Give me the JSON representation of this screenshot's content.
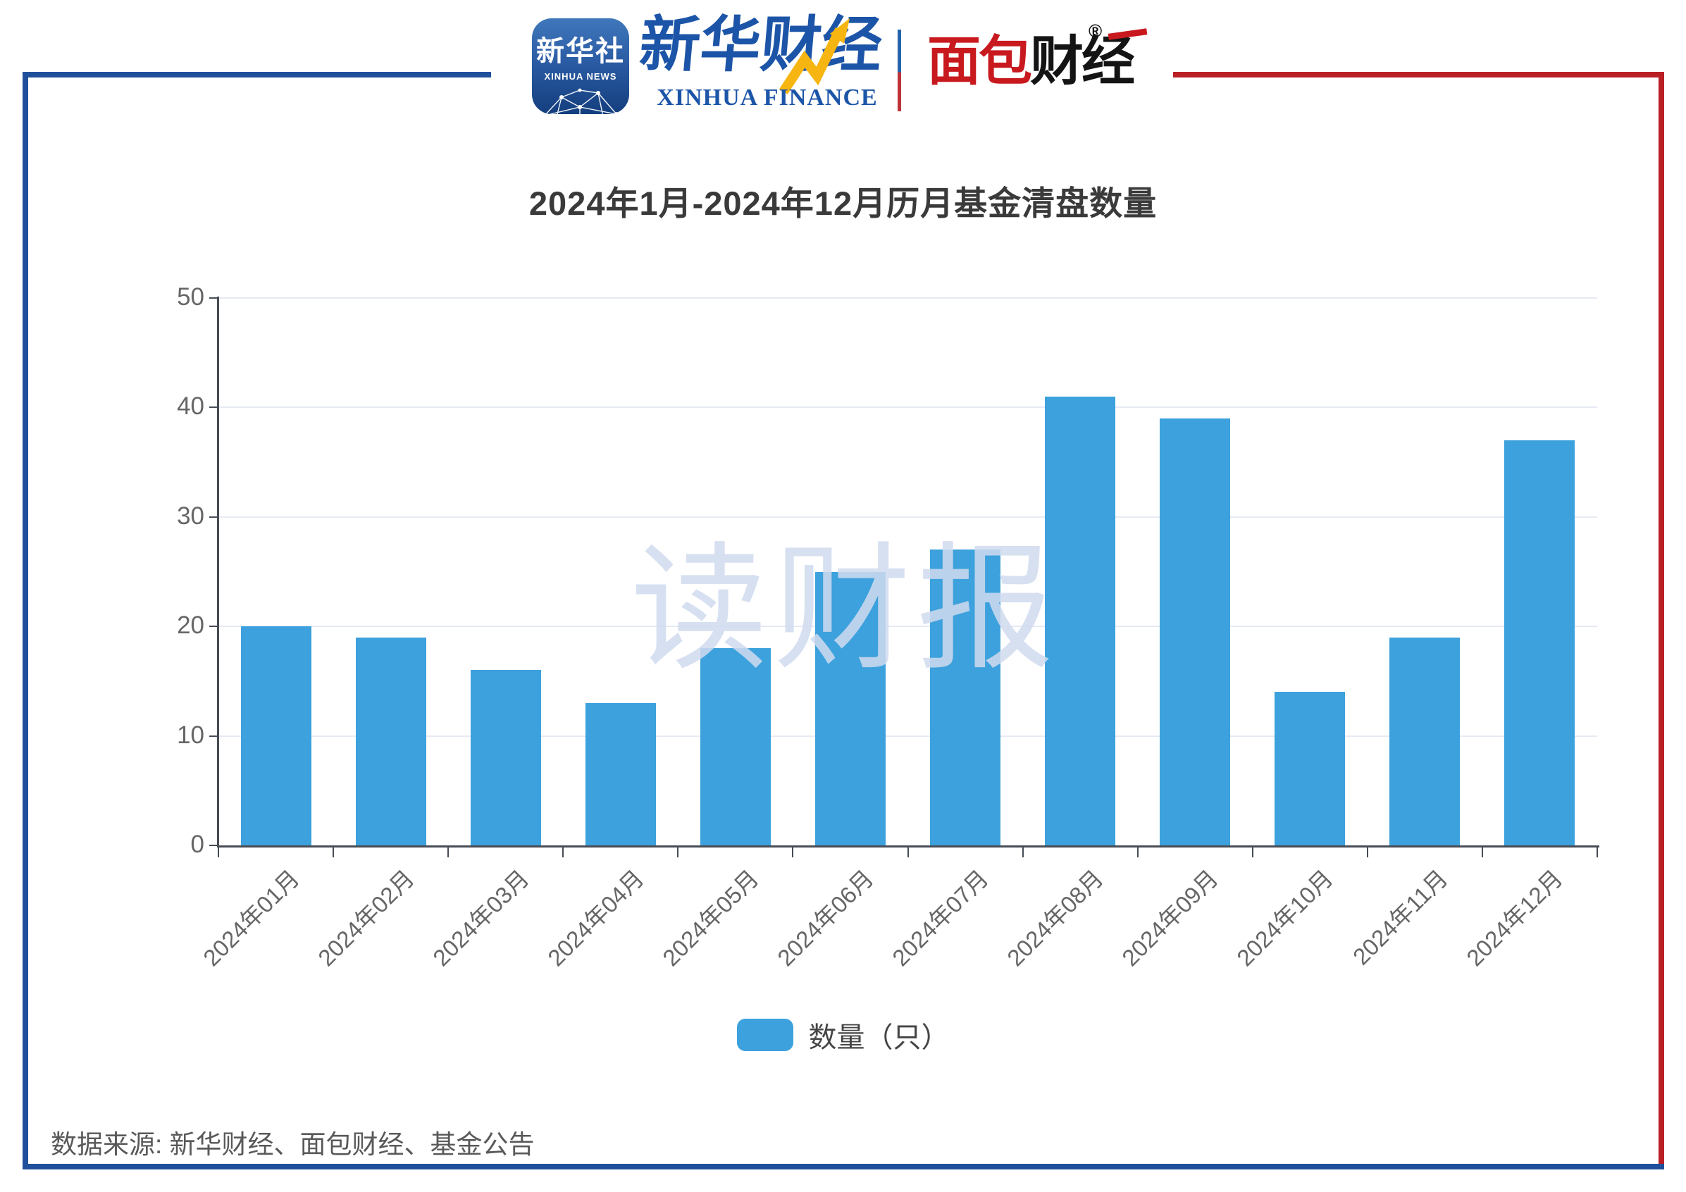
{
  "header": {
    "xinhua_news_icon": {
      "cn": "新华社",
      "en": "XINHUA NEWS"
    },
    "xinhua_finance_logo": {
      "cn": "新华财经",
      "en": "XINHUA FINANCE"
    },
    "mianbao_logo": {
      "cn_red": "面包",
      "cn_black": "财经",
      "registered_mark": "®"
    }
  },
  "title": "2024年1月-2024年12月历月基金清盘数量",
  "chart_data": {
    "type": "bar",
    "title": "2024年1月-2024年12月历月基金清盘数量",
    "categories": [
      "2024年01月",
      "2024年02月",
      "2024年03月",
      "2024年04月",
      "2024年05月",
      "2024年06月",
      "2024年07月",
      "2024年08月",
      "2024年09月",
      "2024年10月",
      "2024年11月",
      "2024年12月"
    ],
    "series": [
      {
        "name": "数量（只）",
        "values": [
          20,
          19,
          16,
          13,
          18,
          25,
          27,
          41,
          39,
          14,
          19,
          37
        ]
      }
    ],
    "xlabel": "",
    "ylabel": "",
    "ylim": [
      0,
      50
    ],
    "yticks": [
      0,
      10,
      20,
      30,
      40,
      50
    ],
    "grid": true,
    "legend_position": "bottom"
  },
  "legend": {
    "label": "数量（只）"
  },
  "watermark": "读财报",
  "footer": "数据来源: 新华财经、面包财经、基金公告",
  "colors": {
    "bar": "#3CA1DC",
    "frame_blue": "#20509B",
    "frame_red": "#B92025",
    "finance_blue": "#1C55A8",
    "bread_red": "#C8191E",
    "axis": "#474C55",
    "grid_line": "#E6EAF4",
    "tick_label": "#666666",
    "title_text": "#3A3A3A",
    "footer_text": "#595959",
    "arrow_yellow": "#F6B511",
    "watermark": "rgba(208,218,238,0.85)"
  }
}
